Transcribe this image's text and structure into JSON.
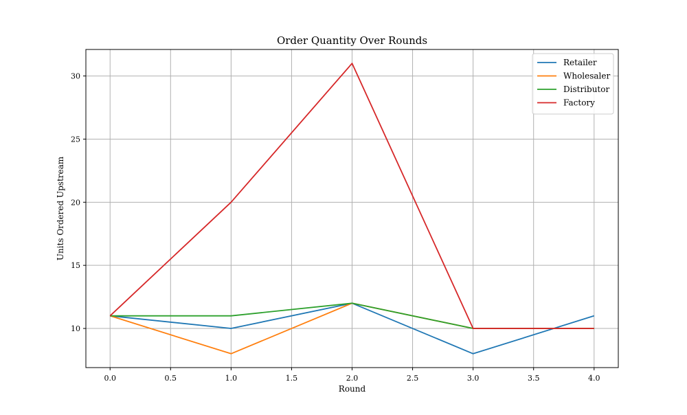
{
  "chart_data": {
    "type": "line",
    "title": "Order Quantity Over Rounds",
    "xlabel": "Round",
    "ylabel": "Units Ordered Upstream",
    "x": [
      0,
      1,
      2,
      3,
      4
    ],
    "xlim": [
      -0.2,
      4.2
    ],
    "ylim": [
      6.9,
      32.1
    ],
    "xticks": [
      0.0,
      0.5,
      1.0,
      1.5,
      2.0,
      2.5,
      3.0,
      3.5,
      4.0
    ],
    "xtick_labels": [
      "0.0",
      "0.5",
      "1.0",
      "1.5",
      "2.0",
      "2.5",
      "3.0",
      "3.5",
      "4.0"
    ],
    "yticks": [
      10,
      15,
      20,
      25,
      30
    ],
    "ytick_labels": [
      "10",
      "15",
      "20",
      "25",
      "30"
    ],
    "grid": true,
    "legend_position": "top-right",
    "series": [
      {
        "name": "Retailer",
        "color": "#1f77b4",
        "values": [
          11,
          10,
          12,
          8,
          11
        ]
      },
      {
        "name": "Wholesaler",
        "color": "#ff7f0e",
        "values": [
          11,
          8,
          12,
          10,
          10
        ]
      },
      {
        "name": "Distributor",
        "color": "#2ca02c",
        "values": [
          11,
          11,
          12,
          10,
          10
        ]
      },
      {
        "name": "Factory",
        "color": "#d62728",
        "values": [
          11,
          20,
          31,
          10,
          10
        ]
      }
    ]
  }
}
